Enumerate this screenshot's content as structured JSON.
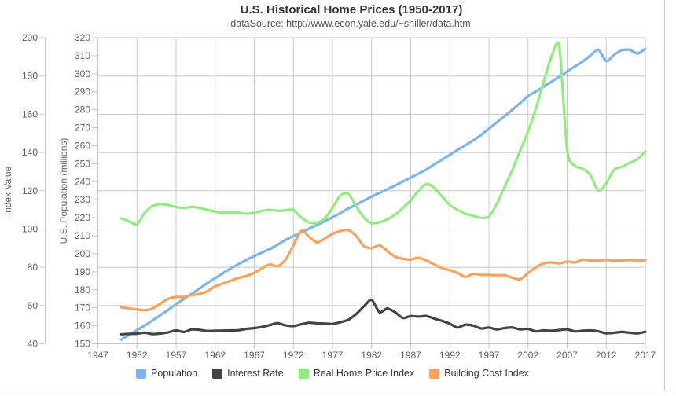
{
  "header": {
    "title": "U.S. Historical Home Prices (1950-2017)",
    "subtitle": "dataSource: http://www.econ.yale.edu/~shiller/data.htm"
  },
  "chart_data": {
    "type": "line",
    "title": "U.S. Historical Home Prices (1950-2017)",
    "subtitle": "dataSource: http://www.econ.yale.edu/~shiller/data.htm",
    "grid": "on",
    "legend_position": "bottom-center",
    "x_axis": {
      "min": 1947,
      "max": 2017,
      "tick_interval": 5,
      "ticks": [
        1947,
        1952,
        1957,
        1962,
        1967,
        1972,
        1977,
        1982,
        1987,
        1992,
        1997,
        2002,
        2007,
        2012,
        2017
      ]
    },
    "y_axes": [
      {
        "id": "index",
        "title": "Index Value",
        "min": 40,
        "max": 200,
        "tick_interval": 20,
        "ticks": [
          200,
          180,
          160,
          140,
          120,
          100,
          80,
          60,
          40
        ]
      },
      {
        "id": "population",
        "title": "U.S. Population (millions)",
        "min": 150,
        "max": 320,
        "tick_interval": 10,
        "ticks": [
          320,
          310,
          300,
          290,
          280,
          270,
          260,
          250,
          240,
          230,
          220,
          210,
          200,
          190,
          180,
          170,
          160,
          150
        ]
      }
    ],
    "years": [
      1950,
      1951,
      1952,
      1953,
      1954,
      1955,
      1956,
      1957,
      1958,
      1959,
      1960,
      1961,
      1962,
      1963,
      1964,
      1965,
      1966,
      1967,
      1968,
      1969,
      1970,
      1971,
      1972,
      1973,
      1974,
      1975,
      1976,
      1977,
      1978,
      1979,
      1980,
      1981,
      1982,
      1983,
      1984,
      1985,
      1986,
      1987,
      1988,
      1989,
      1990,
      1991,
      1992,
      1993,
      1994,
      1995,
      1996,
      1997,
      1998,
      1999,
      2000,
      2001,
      2002,
      2003,
      2004,
      2005,
      2006,
      2007,
      2008,
      2009,
      2010,
      2011,
      2012,
      2013,
      2014,
      2015,
      2016,
      2017
    ],
    "series": [
      {
        "name": "Population",
        "color": "#7cb5ec",
        "axis": "population",
        "values": [
          152.3,
          154.9,
          157.6,
          160.2,
          163,
          165.9,
          168.9,
          172,
          174.9,
          177.8,
          180.7,
          183.7,
          186.5,
          189.2,
          191.9,
          194.3,
          196.6,
          198.7,
          200.7,
          202.7,
          205.1,
          207.7,
          209.9,
          211.9,
          213.9,
          216,
          218,
          220.2,
          222.6,
          225.1,
          227.2,
          229.5,
          231.7,
          233.8,
          235.8,
          237.9,
          240.1,
          242.3,
          244.5,
          246.8,
          249.6,
          252.2,
          255,
          257.7,
          260.3,
          263,
          266,
          269.5,
          273,
          276.5,
          280,
          283.7,
          287.6,
          290.1,
          292.8,
          295.5,
          298.4,
          301.2,
          304.1,
          306.8,
          310.2,
          313.3,
          307,
          310.5,
          313,
          313.3,
          311.2,
          313.9
        ]
      },
      {
        "name": "Interest Rate",
        "color": "#434348",
        "axis": "index",
        "values": [
          45,
          45.2,
          45.3,
          45.8,
          45.1,
          45.4,
          46,
          47,
          46.2,
          47.5,
          47.3,
          46.7,
          46.8,
          46.9,
          47,
          47.1,
          47.8,
          48.2,
          48.8,
          49.8,
          50.8,
          49.6,
          49.3,
          50.2,
          51,
          50.7,
          50.6,
          50.4,
          51.3,
          52.5,
          55.5,
          59.5,
          63,
          56.5,
          58.5,
          56.5,
          53.5,
          54.5,
          54.2,
          54.5,
          53.2,
          52,
          50.5,
          48.5,
          50,
          49.5,
          48,
          48.5,
          47.5,
          48.2,
          48.5,
          47.5,
          47.8,
          46.5,
          47,
          46.8,
          47.2,
          47.5,
          46.5,
          46.8,
          47,
          46.5,
          45.5,
          45.8,
          46.2,
          45.8,
          45.5,
          46.3
        ]
      },
      {
        "name": "Real Home Price Index",
        "color": "#90ed7d",
        "axis": "index",
        "values": [
          105.5,
          104,
          102.5,
          108.5,
          112,
          113,
          112.5,
          111.5,
          111,
          111.5,
          111,
          110,
          109,
          108.5,
          108.5,
          108.5,
          108,
          108.5,
          109.5,
          110,
          109.5,
          109.8,
          110,
          106,
          103.5,
          103.2,
          105.5,
          111,
          117.5,
          118.5,
          112,
          106,
          103,
          103.5,
          105,
          107.5,
          111,
          115,
          120,
          123.5,
          121.5,
          117,
          112.5,
          110,
          108,
          106.8,
          105.8,
          106.5,
          113,
          122,
          131,
          141,
          151,
          163,
          177,
          190,
          195.5,
          141,
          133,
          131.5,
          128,
          120,
          124,
          131,
          132.5,
          134.5,
          136.5,
          140.5
        ]
      },
      {
        "name": "Building Cost Index",
        "color": "#f7a35c",
        "axis": "index",
        "values": [
          59,
          58.5,
          58,
          57.5,
          58.5,
          61,
          63.5,
          64.5,
          64.5,
          65.5,
          66,
          67.5,
          70,
          71.5,
          73,
          74.5,
          75.5,
          77,
          79.5,
          81.5,
          80.5,
          84,
          91.5,
          99,
          96,
          93,
          95,
          97.5,
          99,
          99.5,
          96.5,
          91,
          90,
          91.5,
          88.5,
          85.5,
          84.5,
          84,
          85,
          83.5,
          81.5,
          79.5,
          78.5,
          77,
          75,
          76.5,
          76,
          76,
          75.8,
          75.8,
          74.5,
          73.7,
          77,
          80,
          82,
          82.5,
          82,
          83,
          82.5,
          84,
          83.5,
          83.5,
          83.8,
          83.5,
          83.5,
          83.8,
          83.5,
          83.5
        ]
      }
    ],
    "style": {
      "grid_color": "#c8c8c8",
      "tick_label_color": "#606060",
      "axis_title_color": "#666666",
      "title_color": "#333333",
      "subtitle_color": "#555555"
    }
  }
}
